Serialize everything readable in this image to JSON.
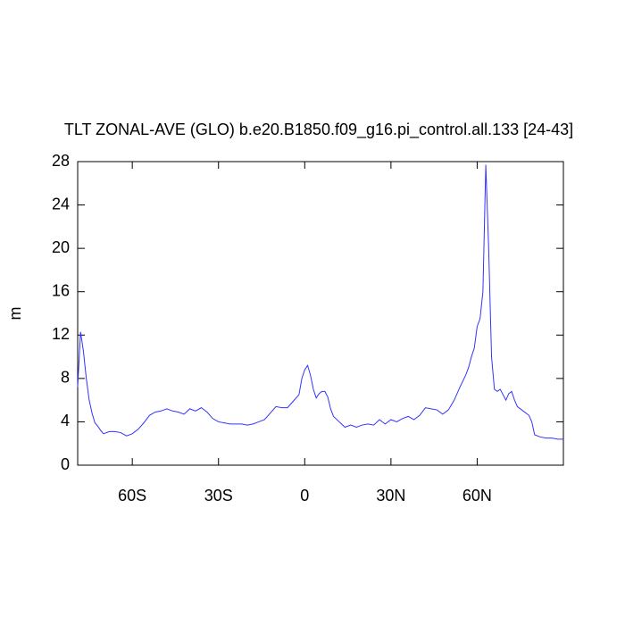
{
  "chart_data": {
    "type": "line",
    "title": "TLT ZONAL-AVE (GLO) b.e20.B1850.f09_g16.pi_control.all.133 [24-43]",
    "y_label": "m",
    "x": [
      -79,
      -78,
      -77,
      -76,
      -75,
      -74,
      -73,
      -72,
      -71,
      -70,
      -68,
      -66,
      -64,
      -62,
      -60,
      -58,
      -56,
      -54,
      -52,
      -50,
      -48,
      -46,
      -44,
      -42,
      -40,
      -38,
      -36,
      -34,
      -32,
      -30,
      -28,
      -26,
      -24,
      -22,
      -20,
      -18,
      -16,
      -14,
      -12,
      -10,
      -8,
      -6,
      -4,
      -2,
      -1,
      0,
      1,
      2,
      3,
      4,
      5,
      6,
      7,
      8,
      9,
      10,
      12,
      14,
      16,
      18,
      20,
      22,
      24,
      26,
      28,
      30,
      32,
      34,
      36,
      38,
      40,
      42,
      44,
      46,
      48,
      50,
      52,
      54,
      56,
      57,
      58,
      59,
      60,
      61,
      62,
      63,
      64,
      65,
      66,
      67,
      68,
      69,
      70,
      71,
      72,
      73,
      74,
      76,
      78,
      79,
      80,
      82,
      84,
      86,
      88,
      90
    ],
    "series": [
      {
        "name": "m",
        "color": "#3333ff",
        "values": [
          7.2,
          12.3,
          10.5,
          8.0,
          6.0,
          4.8,
          3.9,
          3.6,
          3.2,
          2.9,
          3.1,
          3.1,
          3.0,
          2.7,
          2.9,
          3.3,
          3.9,
          4.6,
          4.9,
          5.0,
          5.2,
          5.0,
          4.9,
          4.7,
          5.2,
          5.0,
          5.3,
          4.9,
          4.3,
          4.0,
          3.9,
          3.8,
          3.8,
          3.8,
          3.7,
          3.8,
          4.0,
          4.2,
          4.8,
          5.4,
          5.3,
          5.3,
          5.9,
          6.5,
          8.0,
          8.8,
          9.2,
          8.3,
          7.0,
          6.2,
          6.6,
          6.8,
          6.8,
          6.3,
          5.2,
          4.5,
          4.0,
          3.5,
          3.7,
          3.5,
          3.7,
          3.8,
          3.7,
          4.2,
          3.8,
          4.2,
          4.0,
          4.3,
          4.5,
          4.2,
          4.6,
          5.3,
          5.2,
          5.1,
          4.7,
          5.1,
          6.0,
          7.2,
          8.3,
          9.0,
          10.0,
          10.8,
          12.8,
          13.5,
          16.0,
          27.7,
          20.0,
          10.0,
          7.0,
          6.8,
          7.0,
          6.5,
          6.0,
          6.6,
          6.8,
          6.0,
          5.4,
          5.0,
          4.6,
          4.0,
          2.8,
          2.6,
          2.5,
          2.5,
          2.4,
          2.4
        ]
      }
    ],
    "xlim": [
      -79,
      90
    ],
    "ylim": [
      0,
      28
    ],
    "xticks": [
      {
        "value": -60,
        "label": "60S"
      },
      {
        "value": -30,
        "label": "30S"
      },
      0,
      {
        "value": 30,
        "label": "30N"
      },
      {
        "value": 60,
        "label": "60N"
      }
    ],
    "yticks": [
      0,
      4,
      8,
      12,
      16,
      20,
      24,
      28
    ]
  }
}
